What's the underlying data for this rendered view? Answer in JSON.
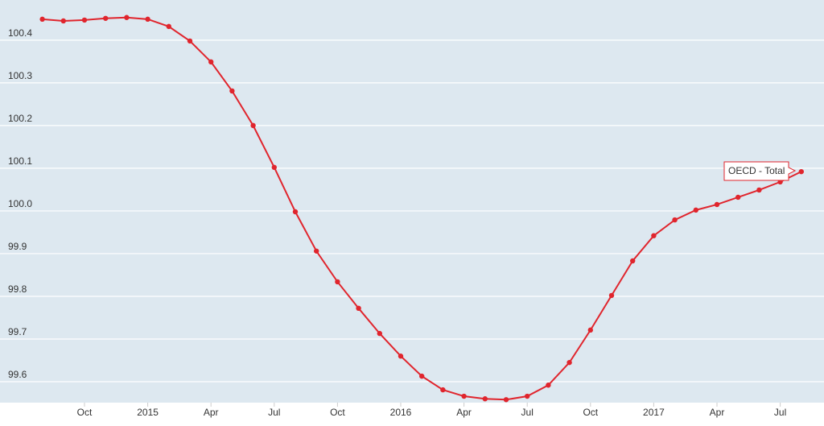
{
  "chart_data": {
    "type": "line",
    "categories": [
      null,
      null,
      "Oct",
      null,
      null,
      "2015",
      null,
      null,
      "Apr",
      null,
      null,
      "Jul",
      null,
      null,
      "Oct",
      null,
      null,
      "2016",
      null,
      null,
      "Apr",
      null,
      null,
      "Jul",
      null,
      null,
      "Oct",
      null,
      null,
      "2017",
      null,
      null,
      "Apr",
      null,
      null,
      "Jul",
      null
    ],
    "series": [
      {
        "name": "OECD - Total",
        "color": "#e0252d",
        "values": [
          100.449,
          100.445,
          100.447,
          100.451,
          100.453,
          100.449,
          100.432,
          100.398,
          100.349,
          100.281,
          100.2,
          100.102,
          99.998,
          99.906,
          99.834,
          99.772,
          99.713,
          99.66,
          99.613,
          99.581,
          99.566,
          99.56,
          99.558,
          99.566,
          99.592,
          99.645,
          99.721,
          99.802,
          99.883,
          99.942,
          99.979,
          100.002,
          100.015,
          100.032,
          100.049,
          100.068,
          100.092
        ]
      }
    ],
    "ylim": [
      99.551,
      100.494
    ],
    "yticks": [
      99.6,
      99.7,
      99.8,
      99.9,
      {
        "value": 100,
        "label": "100.0"
      },
      100.1,
      100.2,
      100.3,
      100.4
    ],
    "grid": true
  }
}
